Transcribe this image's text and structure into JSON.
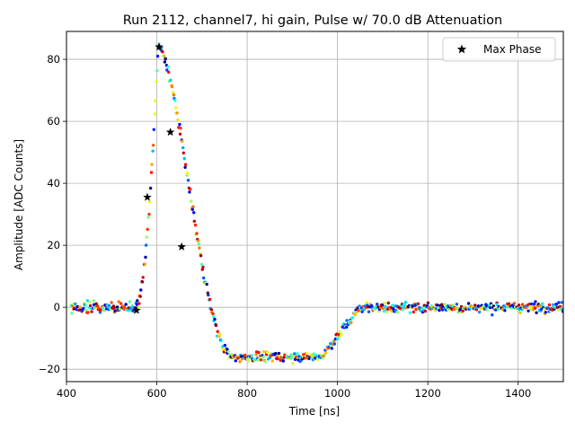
{
  "chart_data": {
    "type": "scatter",
    "title": "Run 2112, channel7, hi gain, Pulse w/ 70.0 dB Attenuation",
    "xlabel": "Time [ns]",
    "ylabel": "Amplitude [ADC Counts]",
    "xlim": [
      400,
      1500
    ],
    "ylim": [
      -24,
      89
    ],
    "xticks": [
      400,
      600,
      800,
      1000,
      1200,
      1400
    ],
    "yticks": [
      -20,
      0,
      20,
      40,
      60,
      80
    ],
    "grid": true,
    "legend_position": "top-right",
    "colormap": "jet",
    "pulse_shape": {
      "baseline": 0,
      "onset_ns": 555,
      "peak_ns": 603,
      "peak_amplitude": 84,
      "undershoot_level": -16,
      "undershoot_start_ns": 770,
      "recovery_start_ns": 965,
      "recovery_end_ns": 1050,
      "noise_sd": 1.1
    },
    "series": [
      {
        "name": "Max Phase",
        "marker": "star",
        "color": "#000000",
        "points": [
          {
            "x": 555,
            "y": -1
          },
          {
            "x": 579,
            "y": 35.5
          },
          {
            "x": 605,
            "y": 84
          },
          {
            "x": 630,
            "y": 56.5
          },
          {
            "x": 655,
            "y": 19.5
          }
        ]
      }
    ]
  }
}
